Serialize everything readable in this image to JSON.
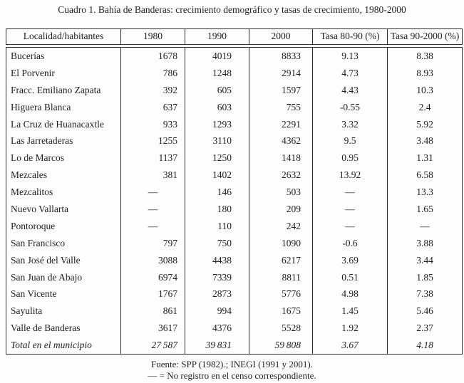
{
  "title": "Cuadro 1. Bahía de Banderas: crecimiento demográfico y tasas de crecimiento, 1980-2000",
  "chart_data": {
    "type": "table",
    "title": "Cuadro 1. Bahía de Banderas: crecimiento demográfico y tasas de crecimiento, 1980-2000",
    "columns": [
      "Localidad/habitantes",
      "1980",
      "1990",
      "2000",
      "Tasa 80-90 (%)",
      "Tasa 90-2000 (%)"
    ],
    "no_data_symbol": "—",
    "rows": [
      {
        "cells": [
          "Bucerías",
          "1678",
          "4019",
          "8833",
          "9.13",
          "8.38"
        ]
      },
      {
        "cells": [
          "El Porvenir",
          "786",
          "1248",
          "2914",
          "4.73",
          "8.93"
        ]
      },
      {
        "cells": [
          "Fracc. Emiliano Zapata",
          "392",
          "605",
          "1597",
          "4.43",
          "10.3"
        ]
      },
      {
        "cells": [
          "Higuera Blanca",
          "637",
          "603",
          "755",
          "-0.55",
          "2.4"
        ]
      },
      {
        "cells": [
          "La Cruz de Huanacaxtle",
          "933",
          "1293",
          "2291",
          "3.32",
          "5.92"
        ]
      },
      {
        "cells": [
          "Las Jarretaderas",
          "1255",
          "3110",
          "4362",
          "9.5",
          "3.48"
        ]
      },
      {
        "cells": [
          "Lo de Marcos",
          "1137",
          "1250",
          "1418",
          "0.95",
          "1.31"
        ]
      },
      {
        "cells": [
          "Mezcales",
          "381",
          "1402",
          "2632",
          "13.92",
          "6.58"
        ]
      },
      {
        "cells": [
          "Mezcalitos",
          "—",
          "146",
          "503",
          "—",
          "13.3"
        ]
      },
      {
        "cells": [
          "Nuevo Vallarta",
          "—",
          "180",
          "209",
          "—",
          "1.65"
        ]
      },
      {
        "cells": [
          "Pontoroque",
          "—",
          "110",
          "242",
          "—",
          "—"
        ]
      },
      {
        "cells": [
          "San Francisco",
          "797",
          "750",
          "1090",
          "-0.6",
          "3.88"
        ]
      },
      {
        "cells": [
          "San José del Valle",
          "3088",
          "4438",
          "6217",
          "3.69",
          "3.44"
        ]
      },
      {
        "cells": [
          "San Juan de Abajo",
          "6974",
          "7339",
          "8811",
          "0.51",
          "1.85"
        ]
      },
      {
        "cells": [
          "San Vicente",
          "1767",
          "2873",
          "5776",
          "4.98",
          "7.38"
        ]
      },
      {
        "cells": [
          "Sayulita",
          "861",
          "994",
          "1675",
          "1.45",
          "5.46"
        ]
      },
      {
        "cells": [
          "Valle de Banderas",
          "3617",
          "4376",
          "5528",
          "1.92",
          "2.37"
        ]
      },
      {
        "cells": [
          "Total en el municipio",
          "27 587",
          "39 831",
          "59 808",
          "3.67",
          "4.18"
        ],
        "italic": true
      }
    ]
  },
  "footer": {
    "source_line": "Fuente: SPP (1982).; INEGI (1991 y 2001).",
    "note_line": "— = No registro en el censo correspondiente."
  },
  "colors": {
    "background": "#fdfdfd",
    "text": "#1e1e1e",
    "border": "#2e2e2e"
  }
}
